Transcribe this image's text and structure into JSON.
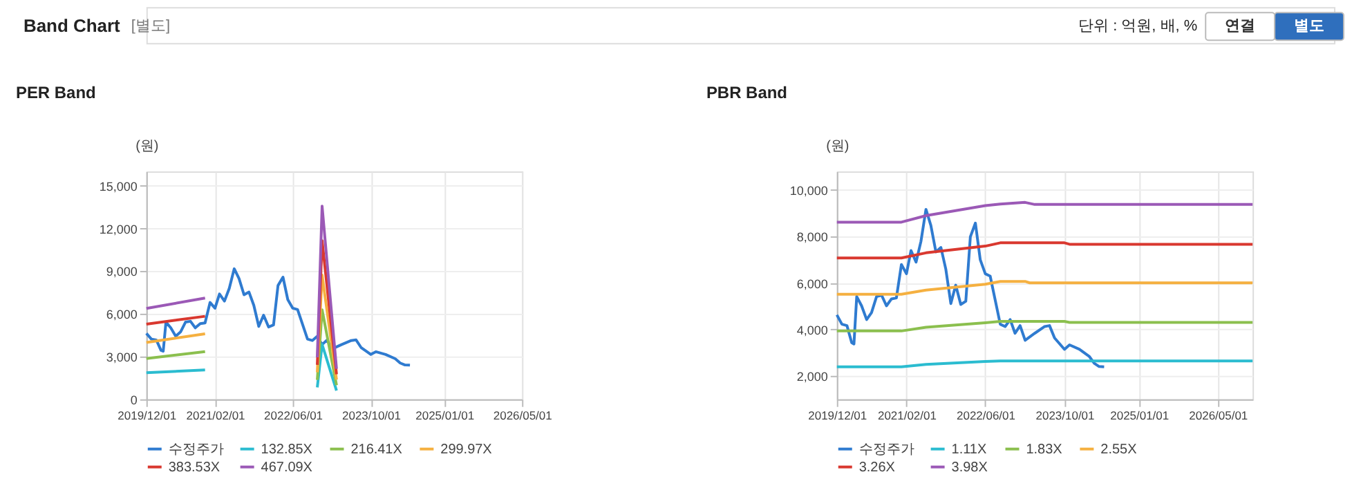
{
  "chart_data": [
    {
      "type": "line",
      "title": "PER Band",
      "annotations": [
        "Band Chart",
        "[별도]",
        "단위 : 억원, 배, %",
        "연결",
        "별도"
      ],
      "ylabel": "(원)",
      "xlim": [
        "2019-12-01",
        "2026-05-01"
      ],
      "xticks": [
        {
          "value": "2019-12-01",
          "label": "2019/12/01"
        },
        {
          "value": "2021-02-01",
          "label": "2021/02/01"
        },
        {
          "value": "2022-06-01",
          "label": "2022/06/01"
        },
        {
          "value": "2023-10-01",
          "label": "2023/10/01"
        },
        {
          "value": "2025-01-01",
          "label": "2025/01/01"
        },
        {
          "value": "2026-05-01",
          "label": "2026/05/01"
        }
      ],
      "ylim": [
        0,
        16000
      ],
      "yticks": [
        {
          "value": 0,
          "label": "0"
        },
        {
          "value": 3000,
          "label": "3,000"
        },
        {
          "value": 6000,
          "label": "6,000"
        },
        {
          "value": 9000,
          "label": "9,000"
        },
        {
          "value": 12000,
          "label": "12,000"
        },
        {
          "value": 15000,
          "label": "15,000"
        }
      ],
      "grid": true,
      "legend": "bottom",
      "marker": "none",
      "line_style": "solid",
      "series": [
        {
          "name": "수정주가",
          "color": "#2f7bd0",
          "x": [
            "2019-12-01",
            "2020-01-01",
            "2020-02-01",
            "2020-03-01",
            "2020-03-15",
            "2020-04-01",
            "2020-05-01",
            "2020-06-01",
            "2020-07-01",
            "2020-08-01",
            "2020-09-01",
            "2020-10-01",
            "2020-11-01",
            "2020-12-01",
            "2021-01-01",
            "2021-02-01",
            "2021-03-01",
            "2021-04-01",
            "2021-05-01",
            "2021-06-01",
            "2021-07-01",
            "2021-08-01",
            "2021-09-01",
            "2021-10-01",
            "2021-11-01",
            "2021-12-01",
            "2022-01-01",
            "2022-02-01",
            "2022-03-01",
            "2022-04-01",
            "2022-05-01",
            "2022-06-01",
            "2022-07-01",
            "2022-09-01",
            "2022-10-01",
            "2022-11-01",
            "2022-12-01",
            "2023-01-01",
            "2023-02-01",
            "2023-04-01",
            "2023-06-01",
            "2023-07-01",
            "2023-08-01",
            "2023-10-01",
            "2023-11-01",
            "2024-01-01",
            "2024-03-01",
            "2024-04-01",
            "2024-05-01",
            "2024-06-01"
          ],
          "values": [
            4630,
            4230,
            4170,
            3440,
            3380,
            5420,
            5020,
            4430,
            4730,
            5420,
            5480,
            5020,
            5320,
            5360,
            6800,
            6400,
            7400,
            6900,
            7790,
            9170,
            8480,
            7340,
            7530,
            6600,
            5120,
            5910,
            5080,
            5220,
            7990,
            8580,
            7000,
            6400,
            6300,
            4230,
            4130,
            4430,
            3840,
            4170,
            3540,
            3840,
            4130,
            4170,
            3640,
            3150,
            3340,
            3150,
            2850,
            2550,
            2410,
            2400
          ]
        },
        {
          "name": "132.85X",
          "color": "#2bbcd0",
          "x": [
            "2019-12-01",
            "2020-12-01",
            "2021-06-01",
            "2022-11-01",
            "2022-12-01",
            "2023-03-01"
          ],
          "values": [
            1870,
            2060,
            null,
            840,
            3860,
            610
          ]
        },
        {
          "name": "216.41X",
          "color": "#8bbf4e",
          "x": [
            "2019-12-01",
            "2020-12-01",
            "2021-06-01",
            "2022-11-01",
            "2022-12-01",
            "2023-03-01"
          ],
          "values": [
            2860,
            3350,
            null,
            1370,
            6290,
            990
          ]
        },
        {
          "name": "299.97X",
          "color": "#f5b040",
          "x": [
            "2019-12-01",
            "2020-12-01",
            "2021-06-01",
            "2022-11-01",
            "2022-12-01",
            "2023-03-01"
          ],
          "values": [
            3990,
            4600,
            null,
            1900,
            8720,
            1380
          ]
        },
        {
          "name": "383.53X",
          "color": "#d9382f",
          "x": [
            "2019-12-01",
            "2020-12-01",
            "2021-06-01",
            "2022-11-01",
            "2022-12-01",
            "2023-03-01"
          ],
          "values": [
            5280,
            5830,
            null,
            2420,
            11140,
            1760
          ]
        },
        {
          "name": "467.09X",
          "color": "#9b59b6",
          "x": [
            "2019-12-01",
            "2020-12-01",
            "2021-06-01",
            "2022-11-01",
            "2022-12-01",
            "2023-03-01"
          ],
          "values": [
            6380,
            7110,
            null,
            2950,
            13570,
            2140
          ]
        }
      ]
    },
    {
      "type": "line",
      "title": "PBR Band",
      "ylabel": "(원)",
      "xlim": [
        "2019-12-01",
        "2026-12-01"
      ],
      "xticks": [
        {
          "value": "2019-12-01",
          "label": "2019/12/01"
        },
        {
          "value": "2021-02-01",
          "label": "2021/02/01"
        },
        {
          "value": "2022-06-01",
          "label": "2022/06/01"
        },
        {
          "value": "2023-10-01",
          "label": "2023/10/01"
        },
        {
          "value": "2025-01-01",
          "label": "2025/01/01"
        },
        {
          "value": "2026-05-01",
          "label": "2026/05/01"
        }
      ],
      "ylim": [
        1000,
        10800
      ],
      "yticks": [
        {
          "value": 2000,
          "label": "2,000"
        },
        {
          "value": 4000,
          "label": "4,000"
        },
        {
          "value": 6000,
          "label": "6,000"
        },
        {
          "value": 8000,
          "label": "8,000"
        },
        {
          "value": 10000,
          "label": "10,000"
        }
      ],
      "grid": true,
      "legend": "bottom",
      "marker": "none",
      "line_style": "solid",
      "series": [
        {
          "name": "수정주가",
          "color": "#2f7bd0",
          "x": [
            "2019-12-01",
            "2020-01-01",
            "2020-02-01",
            "2020-03-01",
            "2020-03-15",
            "2020-04-01",
            "2020-05-01",
            "2020-06-01",
            "2020-07-01",
            "2020-08-01",
            "2020-09-01",
            "2020-10-01",
            "2020-11-01",
            "2020-12-01",
            "2021-01-01",
            "2021-02-01",
            "2021-03-01",
            "2021-04-01",
            "2021-05-01",
            "2021-06-01",
            "2021-07-01",
            "2021-08-01",
            "2021-09-01",
            "2021-10-01",
            "2021-11-01",
            "2021-12-01",
            "2022-01-01",
            "2022-02-01",
            "2022-03-01",
            "2022-04-01",
            "2022-05-01",
            "2022-06-01",
            "2022-07-01",
            "2022-09-01",
            "2022-10-01",
            "2022-11-01",
            "2022-12-01",
            "2023-01-01",
            "2023-02-01",
            "2023-04-01",
            "2023-06-01",
            "2023-07-01",
            "2023-08-01",
            "2023-10-01",
            "2023-11-01",
            "2024-01-01",
            "2024-03-01",
            "2024-04-01",
            "2024-05-01",
            "2024-06-01"
          ],
          "values": [
            4630,
            4230,
            4170,
            3440,
            3380,
            5420,
            5020,
            4430,
            4730,
            5420,
            5480,
            5020,
            5320,
            5360,
            6800,
            6400,
            7400,
            6900,
            7790,
            9170,
            8480,
            7340,
            7530,
            6600,
            5120,
            5910,
            5080,
            5220,
            7990,
            8580,
            7000,
            6400,
            6300,
            4230,
            4130,
            4430,
            3840,
            4170,
            3540,
            3840,
            4130,
            4170,
            3640,
            3150,
            3340,
            3150,
            2850,
            2550,
            2410,
            2400
          ]
        },
        {
          "name": "1.11X",
          "color": "#2bbcd0",
          "x": [
            "2019-12-01",
            "2021-01-01",
            "2021-06-01",
            "2022-06-01",
            "2022-09-01",
            "2023-10-01",
            "2023-11-01",
            "2026-12-01"
          ],
          "values": [
            2400,
            2400,
            2500,
            2630,
            2650,
            2650,
            2650,
            2650
          ]
        },
        {
          "name": "1.83X",
          "color": "#8bbf4e",
          "x": [
            "2019-12-01",
            "2021-01-01",
            "2021-06-01",
            "2022-06-01",
            "2022-09-01",
            "2023-10-01",
            "2023-11-01",
            "2026-12-01"
          ],
          "values": [
            3940,
            3940,
            4100,
            4290,
            4350,
            4350,
            4310,
            4310
          ]
        },
        {
          "name": "2.55X",
          "color": "#f5b040",
          "x": [
            "2019-12-01",
            "2021-01-01",
            "2021-06-01",
            "2022-06-01",
            "2022-09-01",
            "2023-02-01",
            "2023-03-01",
            "2026-12-01"
          ],
          "values": [
            5520,
            5520,
            5700,
            5950,
            6070,
            6070,
            6010,
            6010
          ]
        },
        {
          "name": "3.26X",
          "color": "#d9382f",
          "x": [
            "2019-12-01",
            "2021-01-01",
            "2021-06-01",
            "2022-06-01",
            "2022-09-01",
            "2023-10-01",
            "2023-11-01",
            "2026-12-01"
          ],
          "values": [
            7080,
            7080,
            7300,
            7590,
            7730,
            7730,
            7670,
            7670
          ]
        },
        {
          "name": "3.98X",
          "color": "#9b59b6",
          "x": [
            "2019-12-01",
            "2021-01-01",
            "2021-06-01",
            "2022-06-01",
            "2022-09-01",
            "2023-02-01",
            "2023-04-01",
            "2026-12-01"
          ],
          "values": [
            8620,
            8620,
            8900,
            9330,
            9400,
            9470,
            9380,
            9380
          ]
        }
      ]
    }
  ]
}
